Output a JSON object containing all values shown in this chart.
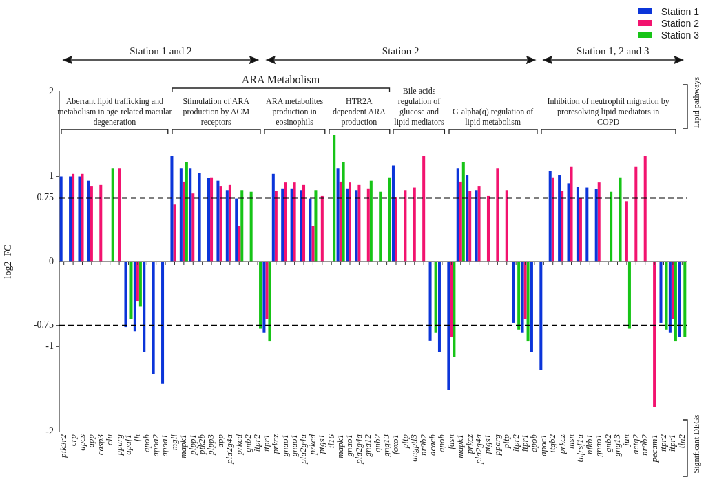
{
  "chart_data": {
    "type": "bar",
    "ylabel": "log2_FC",
    "categories": [
      "pik3r2",
      "crp",
      "apcs",
      "app",
      "casp3",
      "clu",
      "pparg",
      "apaf1",
      "fh",
      "apob",
      "apoa2",
      "apoa1",
      "mgll",
      "mapk1",
      "plpp1",
      "ptk2b",
      "plpp3",
      "app",
      "pla2g4a",
      "prkcd",
      "gnb2",
      "itpr2",
      "itpr1",
      "prkcz",
      "gnao1",
      "gnao1",
      "pla2g4a",
      "prkcd",
      "ptgs1",
      "il16",
      "mapk1",
      "gnao1",
      "pla2g4a",
      "gna12",
      "gnb2",
      "gng13",
      "foxo1",
      "pltp",
      "angptl3",
      "nr0b2",
      "acacb",
      "apob",
      "fasn",
      "mapk1",
      "prkcz",
      "pla2g4a",
      "ptgs1",
      "pparg",
      "pltp",
      "itpr2",
      "itpr1",
      "apob",
      "apoc1",
      "itgb2",
      "prkcz",
      "msn",
      "tnfrsf1a",
      "nfkb1",
      "gnao1",
      "gnb2",
      "gng13",
      "jun",
      "actg2",
      "nr0b2",
      "pecam1",
      "itpr2",
      "itpr1",
      "tln2"
    ],
    "series": [
      {
        "name": "Station 1",
        "color": "#0b35d9",
        "values": [
          1.0,
          1.0,
          1.0,
          0.95,
          null,
          null,
          null,
          -0.77,
          -0.82,
          -1.06,
          -1.32,
          -1.44,
          1.24,
          1.1,
          1.1,
          1.04,
          0.98,
          0.95,
          0.84,
          0.74,
          null,
          null,
          -0.84,
          1.03,
          0.86,
          0.86,
          0.84,
          0.74,
          null,
          null,
          1.1,
          0.86,
          0.84,
          null,
          null,
          null,
          1.13,
          null,
          null,
          null,
          -0.93,
          -1.06,
          -1.51,
          1.1,
          1.02,
          0.84,
          null,
          null,
          null,
          -0.72,
          -0.84,
          -1.06,
          -1.28,
          1.06,
          1.02,
          0.92,
          0.88,
          0.87,
          0.85,
          null,
          null,
          null,
          null,
          null,
          null,
          -0.72,
          -0.84,
          -0.89
        ]
      },
      {
        "name": "Station 2",
        "color": "#f2136f",
        "values": [
          null,
          1.03,
          1.03,
          0.89,
          0.9,
          null,
          1.1,
          null,
          -0.47,
          null,
          null,
          null,
          0.67,
          0.94,
          0.8,
          null,
          0.99,
          0.89,
          0.9,
          0.42,
          null,
          null,
          -0.68,
          0.83,
          0.93,
          0.93,
          0.9,
          0.42,
          0.77,
          null,
          0.94,
          0.93,
          0.9,
          0.86,
          null,
          null,
          0.76,
          0.84,
          0.87,
          1.24,
          null,
          null,
          -0.89,
          0.94,
          0.83,
          0.89,
          0.77,
          1.1,
          0.84,
          null,
          -0.68,
          null,
          null,
          0.99,
          0.83,
          1.12,
          0.75,
          null,
          0.93,
          null,
          null,
          0.71,
          1.12,
          1.24,
          -1.71,
          null,
          -0.68,
          null
        ]
      },
      {
        "name": "Station 3",
        "color": "#17c417",
        "values": [
          null,
          null,
          null,
          null,
          null,
          1.1,
          null,
          -0.68,
          -0.53,
          null,
          null,
          null,
          null,
          1.17,
          null,
          null,
          null,
          null,
          null,
          0.84,
          0.82,
          -0.79,
          -0.94,
          null,
          null,
          null,
          null,
          0.84,
          null,
          1.49,
          1.17,
          null,
          null,
          0.95,
          0.82,
          0.99,
          null,
          null,
          null,
          null,
          -0.84,
          null,
          -1.12,
          1.17,
          null,
          null,
          null,
          null,
          null,
          -0.8,
          -0.94,
          null,
          null,
          null,
          null,
          null,
          null,
          null,
          null,
          0.82,
          0.99,
          -0.79,
          null,
          null,
          null,
          -0.8,
          -0.94,
          -0.89
        ]
      }
    ],
    "ylim": [
      -2,
      2
    ],
    "yticks": [
      2,
      1,
      0.75,
      0,
      -0.75,
      -1,
      -2
    ],
    "ref_lines": [
      {
        "axis": "y",
        "value": 0.75,
        "color": "#000000",
        "line_style": "dashed"
      },
      {
        "axis": "y",
        "value": -0.75,
        "color": "#000000",
        "line_style": "dashed"
      }
    ],
    "grid": false,
    "legend": "top right",
    "annotations": [
      "Station 1 and 2",
      "Station 2",
      "Station 1, 2 and 3",
      "ARA Metabolism",
      "Aberrant lipid trafficking and metabolism in age-related macular degeneration",
      "Stimulation of ARA production by ACM receptors",
      "ARA metabolites production in eosinophils",
      "HTR2A dependent ARA production",
      "Bile acids regulation of glucose and lipid mediators",
      "G-alpha(q) regulation of lipid metabolism",
      "Inhibition of neutrophil migration by proresolving lipid mediators in COPD",
      "Lipid pathways",
      "Significant DEGs"
    ]
  }
}
